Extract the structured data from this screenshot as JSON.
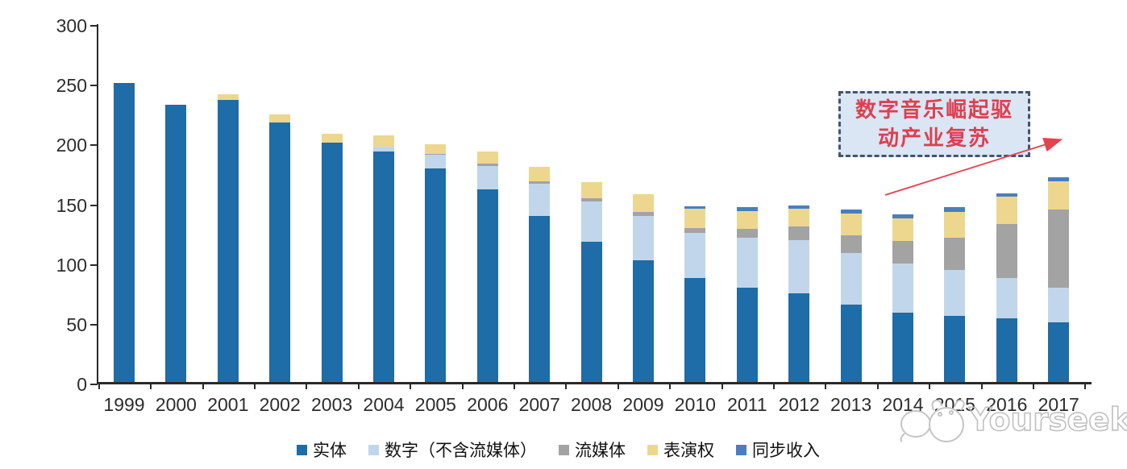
{
  "chart_data": {
    "type": "bar",
    "stacked": true,
    "categories": [
      "1999",
      "2000",
      "2001",
      "2002",
      "2003",
      "2004",
      "2005",
      "2006",
      "2007",
      "2008",
      "2009",
      "2010",
      "2011",
      "2012",
      "2013",
      "2014",
      "2015",
      "2016",
      "2017"
    ],
    "series": [
      {
        "name": "实体",
        "color": "#1E6CA8",
        "values": [
          252,
          234,
          238,
          219,
          202,
          195,
          181,
          163,
          141,
          119,
          104,
          89,
          81,
          76,
          67,
          60,
          57,
          55,
          52
        ]
      },
      {
        "name": "数字（不含流媒体）",
        "color": "#C1D6EB",
        "values": [
          0,
          0,
          0,
          0,
          0,
          4,
          11,
          20,
          27,
          34,
          37,
          38,
          42,
          45,
          43,
          41,
          39,
          34,
          29
        ]
      },
      {
        "name": "流媒体",
        "color": "#A3A3A4",
        "values": [
          0,
          0,
          0,
          0,
          0,
          0,
          1,
          2,
          2,
          3,
          3,
          4,
          7,
          11,
          15,
          19,
          27,
          45,
          65
        ]
      },
      {
        "name": "表演权",
        "color": "#EDD78F",
        "values": [
          0,
          0,
          5,
          7,
          8,
          9,
          8,
          10,
          12,
          13,
          15,
          16,
          15,
          15,
          18,
          19,
          21,
          23,
          24
        ]
      },
      {
        "name": "同步收入",
        "color": "#477FBF",
        "values": [
          0,
          0,
          0,
          0,
          0,
          0,
          0,
          0,
          0,
          0,
          0,
          2,
          3,
          3,
          3,
          3,
          4,
          3,
          3
        ]
      }
    ],
    "ylim": [
      0,
      300
    ],
    "yticks": [
      0,
      50,
      100,
      150,
      200,
      250,
      300
    ],
    "grid": false,
    "legend_position": "bottom",
    "axis_color": "#2a2a2a",
    "label_color": "#2d2d2d"
  },
  "annotation": {
    "line1": "数字音乐崛起驱",
    "line2": "动产业复苏",
    "box_fill": "#DAE6F4",
    "border_color": "#44546A",
    "text_color": "#DE3F50",
    "arrow_color": "#E8404F"
  },
  "watermark": {
    "text": "Yourseeker"
  }
}
